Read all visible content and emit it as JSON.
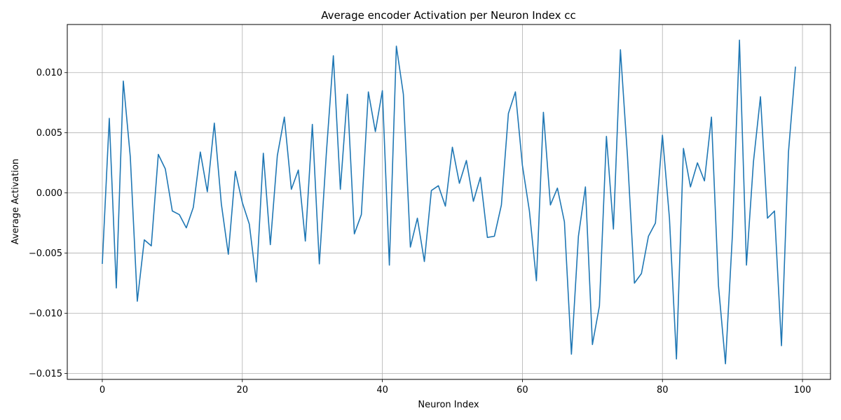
{
  "chart_data": {
    "type": "line",
    "title": "Average encoder Activation per Neuron Index cc",
    "xlabel": "Neuron Index",
    "ylabel": "Average Activation",
    "xlim": [
      -5,
      104
    ],
    "ylim": [
      -0.0155,
      0.014
    ],
    "xticks": [
      0,
      20,
      40,
      60,
      80,
      100
    ],
    "xtick_labels": [
      "0",
      "20",
      "40",
      "60",
      "80",
      "100"
    ],
    "yticks": [
      -0.015,
      -0.01,
      -0.005,
      0.0,
      0.005,
      0.01
    ],
    "ytick_labels": [
      "−0.015",
      "−0.010",
      "−0.005",
      "0.000",
      "0.005",
      "0.010"
    ],
    "grid": true,
    "line_color": "#1f77b4",
    "series": [
      {
        "x": [
          0,
          1,
          2,
          3,
          4,
          5,
          6,
          7,
          8,
          9,
          10,
          11,
          12,
          13,
          14,
          15,
          16,
          17,
          18,
          19,
          20,
          21,
          22,
          23,
          24,
          25,
          26,
          27,
          28,
          29,
          30,
          31,
          32,
          33,
          34,
          35,
          36,
          37,
          38,
          39,
          40,
          41,
          42,
          43,
          44,
          45,
          46,
          47,
          48,
          49,
          50,
          51,
          52,
          53,
          54,
          55,
          56,
          57,
          58,
          59,
          60,
          61,
          62,
          63,
          64,
          65,
          66,
          67,
          68,
          69,
          70,
          71,
          72,
          73,
          74,
          75,
          76,
          77,
          78,
          79,
          80,
          81,
          82,
          83,
          84,
          85,
          86,
          87,
          88,
          89,
          90,
          91,
          92,
          93,
          94,
          95,
          96,
          97,
          98,
          99
        ],
        "values": [
          -0.0059,
          0.0062,
          -0.0079,
          0.0093,
          0.003,
          -0.009,
          -0.0039,
          -0.0044,
          0.0032,
          0.002,
          -0.0015,
          -0.0018,
          -0.0029,
          -0.0012,
          0.0034,
          0.0001,
          0.0058,
          -0.0009,
          -0.0051,
          0.0018,
          -0.0008,
          -0.0026,
          -0.0074,
          0.0033,
          -0.0043,
          0.0031,
          0.0063,
          0.0003,
          0.0019,
          -0.004,
          0.0057,
          -0.0059,
          0.0033,
          0.0114,
          0.0003,
          0.0082,
          -0.0034,
          -0.0018,
          0.0084,
          0.0051,
          0.0085,
          -0.006,
          0.0122,
          0.0082,
          -0.0045,
          -0.0021,
          -0.0057,
          0.0002,
          0.0006,
          -0.0011,
          0.0038,
          0.0008,
          0.0027,
          -0.0007,
          0.0013,
          -0.0037,
          -0.0036,
          -0.001,
          0.0066,
          0.0084,
          0.0023,
          -0.0015,
          -0.0073,
          0.0067,
          -0.001,
          0.0004,
          -0.0024,
          -0.0134,
          -0.0036,
          0.0005,
          -0.0126,
          -0.0094,
          0.0047,
          -0.003,
          0.0119,
          0.0031,
          -0.0075,
          -0.0067,
          -0.0036,
          -0.0025,
          0.0048,
          -0.0021,
          -0.0138,
          0.0037,
          0.0005,
          0.0025,
          0.001,
          0.0063,
          -0.0077,
          -0.0142,
          -0.0034,
          0.0127,
          -0.006,
          0.0026,
          0.008,
          -0.0021,
          -0.0015,
          -0.0127,
          0.0034,
          0.0105
        ]
      }
    ]
  }
}
